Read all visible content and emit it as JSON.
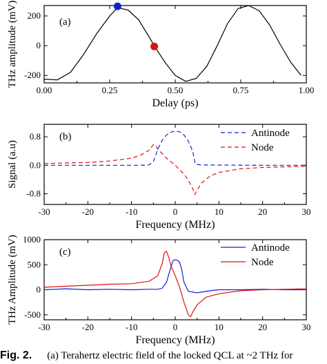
{
  "chart_data": [
    {
      "type": "line",
      "panel_label": "(a)",
      "xlabel": "Delay (ps)",
      "ylabel": "THz amplitude (mV)",
      "xlim": [
        0,
        1
      ],
      "ylim": [
        -250,
        270
      ],
      "xticks": [
        "0.00",
        "0.25",
        "0.50",
        "0.75",
        "1.00"
      ],
      "xtick_values": [
        0,
        0.25,
        0.5,
        0.75,
        1.0
      ],
      "yticks": [
        "-200",
        "0",
        "200"
      ],
      "ytick_values": [
        -200,
        0,
        200
      ],
      "series": [
        {
          "color": "#000000",
          "x": [
            0,
            0.05,
            0.1,
            0.15,
            0.2,
            0.25,
            0.28,
            0.32,
            0.36,
            0.4,
            0.42,
            0.46,
            0.5,
            0.54,
            0.58,
            0.62,
            0.66,
            0.7,
            0.74,
            0.78,
            0.82,
            0.86,
            0.9,
            0.94,
            0.98
          ],
          "y": [
            -225,
            -230,
            -180,
            -60,
            80,
            200,
            255,
            240,
            175,
            60,
            0,
            -110,
            -200,
            -240,
            -220,
            -140,
            0,
            150,
            250,
            270,
            235,
            140,
            10,
            -110,
            -200
          ]
        }
      ],
      "markers": [
        {
          "name": "Antinode",
          "x": 0.28,
          "y": 265,
          "color": "#1020d0"
        },
        {
          "name": "Node",
          "x": 0.42,
          "y": -5,
          "color": "#e01010"
        }
      ],
      "grid": false
    },
    {
      "type": "line",
      "panel_label": "(b)",
      "xlabel": "Frequency (MHz)",
      "ylabel": "Signal (a.u)",
      "xlim": [
        -30,
        30
      ],
      "ylim": [
        -1.1,
        1.15
      ],
      "xticks": [
        "-30",
        "-20",
        "-10",
        "0",
        "10",
        "20",
        "30"
      ],
      "xtick_values": [
        -30,
        -20,
        -10,
        0,
        10,
        20,
        30
      ],
      "yticks": [
        "0.8",
        "0.0",
        "-0.8"
      ],
      "ytick_values": [
        0.8,
        0,
        -0.8
      ],
      "legend_position": "top-right",
      "series": [
        {
          "name": "Antinode",
          "color": "#1020d0",
          "dash": "6,4",
          "x": [
            -30,
            -8,
            -6,
            -5,
            -4,
            -3,
            -2,
            -1,
            0,
            1,
            2,
            3,
            4,
            4.6,
            6,
            10,
            20,
            30
          ],
          "y": [
            0,
            0,
            0.01,
            0.1,
            0.45,
            0.7,
            0.85,
            0.93,
            0.96,
            0.94,
            0.85,
            0.68,
            0.4,
            0.03,
            0.01,
            0.005,
            0,
            0
          ]
        },
        {
          "name": "Node",
          "color": "#e01010",
          "dash": "6,4",
          "x": [
            -30,
            -20,
            -15,
            -10,
            -8,
            -6,
            -5,
            -4.5,
            -4,
            -3,
            -2,
            -1,
            0,
            1,
            2,
            3,
            4,
            4.5,
            5,
            6,
            8,
            10,
            15,
            20,
            30
          ],
          "y": [
            0.05,
            0.08,
            0.12,
            0.2,
            0.28,
            0.42,
            0.58,
            0.56,
            0.45,
            0.33,
            0.2,
            0.1,
            0,
            -0.12,
            -0.25,
            -0.42,
            -0.65,
            -0.82,
            -0.7,
            -0.5,
            -0.3,
            -0.2,
            -0.1,
            -0.06,
            -0.03
          ]
        }
      ],
      "grid": false
    },
    {
      "type": "line",
      "panel_label": "(c)",
      "xlabel": "Frequency (MHz)",
      "ylabel": "THz Amplitude (mV)",
      "xlim": [
        -30,
        30
      ],
      "ylim": [
        -600,
        1000
      ],
      "xticks": [
        "-30",
        "-20",
        "-10",
        "0",
        "10",
        "20",
        "30"
      ],
      "xtick_values": [
        -30,
        -20,
        -10,
        0,
        10,
        20,
        30
      ],
      "yticks": [
        "1000",
        "500",
        "0",
        "-500"
      ],
      "ytick_values": [
        1000,
        500,
        0,
        -500
      ],
      "legend_position": "top-right",
      "series": [
        {
          "name": "Antinode",
          "color": "#1020d0",
          "x": [
            -30,
            -25,
            -20,
            -15,
            -10,
            -6,
            -4,
            -3,
            -2,
            -1,
            -0.5,
            0,
            0.5,
            1,
            1.5,
            2,
            3,
            5,
            8,
            10,
            15,
            20,
            25,
            30
          ],
          "y": [
            0,
            20,
            0,
            10,
            0,
            10,
            10,
            30,
            150,
            450,
            580,
            600,
            590,
            550,
            400,
            150,
            -30,
            -60,
            -20,
            0,
            0,
            10,
            0,
            0
          ]
        },
        {
          "name": "Node",
          "color": "#e01010",
          "x": [
            -30,
            -25,
            -20,
            -15,
            -10,
            -6,
            -4,
            -3,
            -2.5,
            -2,
            -1.5,
            -1,
            0,
            1,
            2,
            3,
            3.5,
            4,
            5,
            7,
            10,
            15,
            20,
            25,
            30
          ],
          "y": [
            50,
            70,
            90,
            110,
            120,
            170,
            280,
            520,
            740,
            770,
            650,
            480,
            280,
            50,
            -250,
            -500,
            -540,
            -450,
            -300,
            -150,
            -80,
            -20,
            0,
            10,
            20
          ]
        }
      ],
      "grid": false
    }
  ],
  "caption": {
    "label": "Fig. 2.",
    "text": "(a) Terahertz electric field of the locked QCL at ~2 THz for"
  }
}
